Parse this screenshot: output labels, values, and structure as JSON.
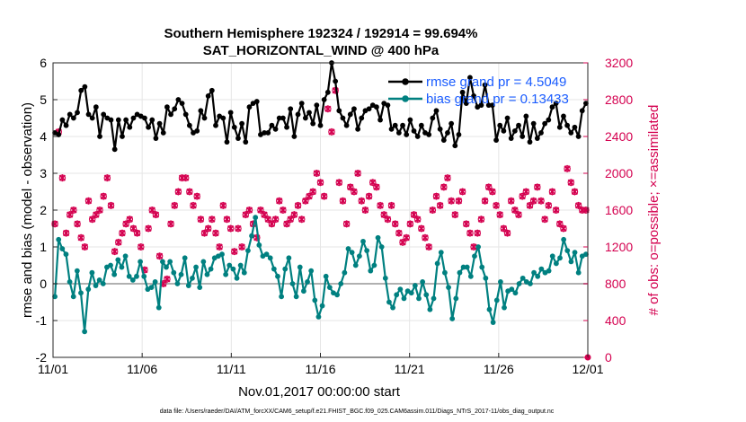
{
  "chart_data": {
    "type": "line",
    "title_line1": "Southern Hemisphere 192324 / 192914 = 99.694%",
    "title_line2": "SAT_HORIZONTAL_WIND @ 400 hPa",
    "xlabel": "Nov.01,2017 00:00:00 start",
    "ylabel": "rmse and bias (model - observation)",
    "ylabel_right": "# of obs: o=possible; ×=assimilated",
    "footnote": "data file: /Users/raeder/DAI/ATM_forcXX/CAM6_setup/f.e21.FHIST_BGC.f09_025.CAM6assim.011/Diags_NTrS_2017-11/obs_diag_output.nc",
    "xlim": [
      0,
      30
    ],
    "ylim": [
      -2,
      6
    ],
    "ylim_right": [
      0,
      3200
    ],
    "x_ticks": [
      0,
      5,
      10,
      15,
      20,
      25,
      30
    ],
    "x_tick_labels": [
      "11/01",
      "11/06",
      "11/11",
      "11/16",
      "11/21",
      "11/26",
      "12/01"
    ],
    "y_ticks": [
      "-2",
      "-1",
      "0",
      "1",
      "2",
      "3",
      "4",
      "5",
      "6"
    ],
    "y_ticks_right": [
      "0",
      "400",
      "800",
      "1200",
      "1600",
      "2000",
      "2400",
      "2800",
      "3200"
    ],
    "grid": true,
    "legend_position": "top-right",
    "series": [
      {
        "name": "rmse grand pr = 4.5049",
        "color": "#000000",
        "axis": "left",
        "values": [
          4.1,
          4.05,
          4.45,
          4.3,
          4.6,
          4.5,
          4.65,
          5.25,
          5.35,
          4.6,
          4.5,
          4.8,
          4.0,
          4.6,
          4.5,
          4.45,
          3.65,
          4.45,
          4.0,
          4.45,
          4.25,
          4.5,
          4.6,
          4.55,
          4.5,
          4.25,
          4.45,
          3.95,
          4.35,
          4.1,
          4.8,
          4.6,
          4.75,
          5.0,
          4.9,
          4.6,
          4.3,
          4.1,
          4.15,
          4.7,
          4.5,
          5.1,
          5.25,
          4.3,
          4.55,
          4.5,
          3.85,
          4.65,
          4.25,
          3.95,
          4.35,
          3.85,
          4.8,
          4.9,
          4.95,
          4.05,
          4.1,
          4.1,
          4.3,
          4.2,
          4.5,
          4.5,
          4.25,
          4.75,
          4.0,
          4.6,
          4.9,
          4.5,
          4.65,
          4.35,
          4.85,
          4.3,
          5.0,
          5.2,
          6.0,
          5.5,
          4.7,
          4.5,
          4.3,
          4.6,
          4.75,
          4.2,
          4.5,
          4.7,
          4.75,
          4.85,
          4.8,
          4.45,
          4.9,
          4.85,
          4.2,
          4.3,
          4.1,
          4.3,
          4.05,
          4.45,
          4.15,
          4.0,
          4.3,
          4.1,
          4.05,
          4.5,
          4.7,
          4.2,
          3.9,
          4.1,
          4.35,
          3.75,
          4.05,
          5.2,
          4.9,
          5.6,
          5.1,
          4.8,
          4.85,
          5.4,
          4.85,
          4.85,
          3.9,
          4.3,
          4.15,
          4.5,
          3.95,
          4.15,
          4.3,
          4.0,
          4.55,
          3.85,
          4.35,
          3.95,
          4.1,
          4.35,
          4.45,
          4.8,
          4.9,
          4.25,
          4.55,
          4.3,
          4.1,
          4.25,
          4.0,
          4.7,
          4.9
        ]
      },
      {
        "name": "bias grand pr = 0.13433",
        "color": "#008080",
        "axis": "left",
        "values": [
          -0.35,
          1.2,
          0.95,
          0.8,
          0.05,
          -0.35,
          0.35,
          -0.25,
          -1.3,
          -0.15,
          0.3,
          -0.05,
          0.1,
          0.0,
          0.45,
          0.5,
          0.25,
          0.65,
          0.45,
          0.75,
          0.2,
          0.1,
          0.2,
          0.6,
          0.2,
          -0.15,
          -0.1,
          0.05,
          -0.65,
          0.6,
          0.45,
          0.6,
          0.3,
          0.0,
          0.25,
          0.7,
          -0.05,
          0.15,
          0.45,
          -0.1,
          0.6,
          0.25,
          0.4,
          0.7,
          0.75,
          0.8,
          0.25,
          0.5,
          0.4,
          0.15,
          0.5,
          0.3,
          0.9,
          1.3,
          1.8,
          1.05,
          0.75,
          0.8,
          0.7,
          0.4,
          0.2,
          -0.35,
          0.4,
          0.7,
          0.0,
          -0.35,
          0.45,
          -0.2,
          0.05,
          0.35,
          -0.45,
          -0.9,
          -0.6,
          0.2,
          -0.1,
          -0.25,
          -0.3,
          0.0,
          0.3,
          0.95,
          0.85,
          0.5,
          0.75,
          1.15,
          0.9,
          0.35,
          0.5,
          1.25,
          1.0,
          0.15,
          -0.5,
          -0.65,
          -0.3,
          -0.15,
          -0.4,
          -0.2,
          -0.25,
          -0.05,
          -0.4,
          0.05,
          -0.3,
          -0.7,
          -0.4,
          0.55,
          0.85,
          0.3,
          -0.1,
          -0.95,
          -0.4,
          0.3,
          0.45,
          0.45,
          0.2,
          0.75,
          1.0,
          0.45,
          0.15,
          -0.7,
          -1.05,
          -0.45,
          0.05,
          -0.65,
          -0.2,
          -0.15,
          -0.25,
          0.0,
          0.15,
          0.05,
          0.0,
          0.3,
          0.2,
          0.4,
          0.3,
          0.35,
          0.75,
          0.55,
          0.7,
          1.2,
          0.9,
          0.6,
          0.85,
          0.3,
          0.75,
          0.8
        ]
      },
      {
        "name": "possible",
        "color": "#d4004f",
        "axis": "right",
        "marker": "o",
        "values": [
          1450,
          2450,
          1950,
          1350,
          1550,
          1600,
          1450,
          1300,
          1200,
          1700,
          1500,
          1550,
          1600,
          1750,
          1950,
          1650,
          1150,
          1250,
          1350,
          1450,
          1500,
          1400,
          1350,
          1200,
          950,
          1400,
          1600,
          1550,
          1100,
          800,
          850,
          1450,
          1650,
          1800,
          1950,
          1950,
          1800,
          1650,
          1750,
          1500,
          1350,
          1400,
          1500,
          1350,
          1200,
          1650,
          1500,
          1400,
          1150,
          1400,
          1200,
          1550,
          1600,
          1450,
          1300,
          1600,
          1550,
          1500,
          1450,
          1500,
          1700,
          1600,
          1450,
          1500,
          1550,
          1650,
          1500,
          1700,
          1750,
          1800,
          2000,
          1900,
          1750,
          2700,
          2450,
          2900,
          1900,
          1700,
          1450,
          1850,
          1800,
          2000,
          1700,
          1600,
          1750,
          1900,
          1850,
          1650,
          1550,
          1500,
          1650,
          1450,
          1350,
          1250,
          1300,
          1450,
          1550,
          1500,
          1400,
          1300,
          1200,
          1600,
          1750,
          1650,
          1850,
          1950,
          1700,
          1550,
          1700,
          1800,
          1450,
          1350,
          1200,
          1350,
          1500,
          1700,
          1850,
          1800,
          1650,
          1550,
          1400,
          1350,
          1700,
          1600,
          1550,
          1750,
          1800,
          1650,
          1700,
          1850,
          1700,
          1500,
          1650,
          1800,
          1600,
          1450,
          1400,
          2050,
          1900,
          1800,
          1650,
          1600,
          1600
        ]
      },
      {
        "name": "assimilated",
        "color": "#d4004f",
        "axis": "right",
        "marker": "x",
        "values": [
          1450,
          2450,
          1950,
          1350,
          1550,
          1600,
          1450,
          1300,
          1200,
          1700,
          1500,
          1550,
          1600,
          1750,
          1950,
          1650,
          1150,
          1250,
          1350,
          1450,
          1500,
          1400,
          1350,
          1200,
          950,
          1400,
          1600,
          1550,
          1100,
          800,
          850,
          1450,
          1650,
          1800,
          1950,
          1950,
          1800,
          1650,
          1750,
          1500,
          1350,
          1400,
          1500,
          1350,
          1200,
          1650,
          1500,
          1400,
          1150,
          1400,
          1200,
          1550,
          1600,
          1450,
          1300,
          1600,
          1550,
          1500,
          1450,
          1500,
          1700,
          1600,
          1450,
          1500,
          1550,
          1650,
          1500,
          1700,
          1750,
          1800,
          2000,
          1900,
          1750,
          2700,
          2450,
          2900,
          1900,
          1700,
          1450,
          1850,
          1800,
          2000,
          1700,
          1600,
          1750,
          1900,
          1850,
          1650,
          1550,
          1500,
          1650,
          1450,
          1350,
          1250,
          1300,
          1450,
          1550,
          1500,
          1400,
          1300,
          1200,
          1600,
          1750,
          1650,
          1850,
          1950,
          1700,
          1550,
          1700,
          1800,
          1450,
          1350,
          1200,
          1350,
          1500,
          1700,
          1850,
          1800,
          1650,
          1550,
          1400,
          1350,
          1700,
          1600,
          1550,
          1750,
          1800,
          1650,
          1700,
          1850,
          1700,
          1500,
          1650,
          1800,
          1600,
          1450,
          1400,
          2050,
          1900,
          1800,
          1650,
          1600,
          1600
        ]
      }
    ]
  }
}
